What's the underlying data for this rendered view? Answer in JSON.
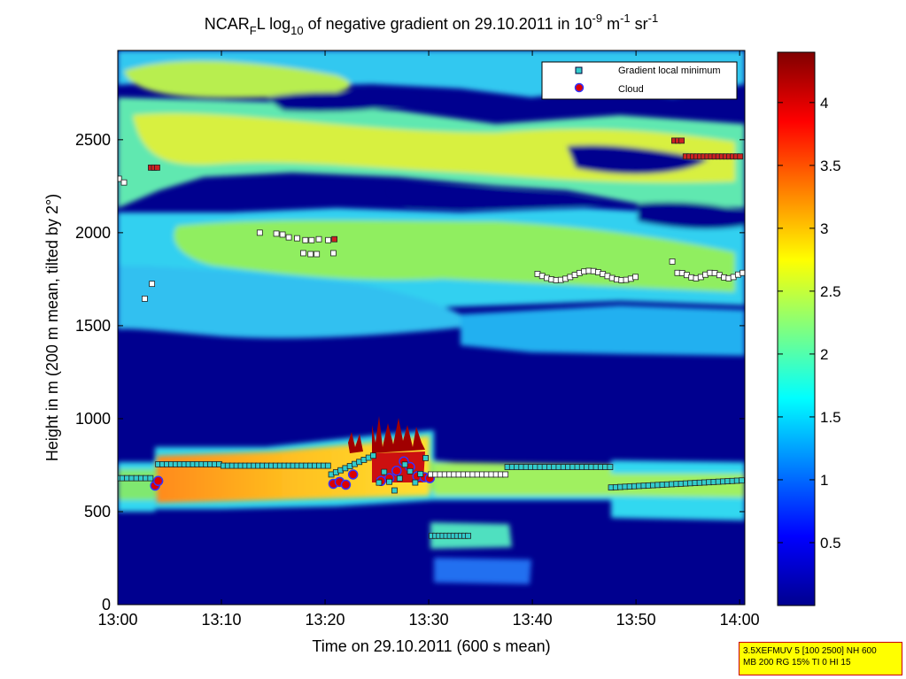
{
  "chart_data": {
    "type": "heatmap",
    "title": {
      "prefix": "NCAR",
      "sub1": "F",
      "mid1": "L log",
      "sub2": "10",
      "mid2": " of negative gradient on 29.10.2011 in 10",
      "sup1": "-9",
      "mid3": " m",
      "sup2": "-1",
      "mid4": " sr",
      "sup3": "-1"
    },
    "xlabel": "Time on 29.10.2011 (600 s mean)",
    "ylabel": "Height in m (200 m mean, tilted by 2°)",
    "x_ticks": [
      "13:00",
      "13:10",
      "13:20",
      "13:30",
      "13:40",
      "13:50",
      "14:00"
    ],
    "x_range_minutes": [
      0,
      60.5
    ],
    "y_ticks": [
      0,
      500,
      1000,
      1500,
      2000,
      2500
    ],
    "y_range": [
      0,
      2980
    ],
    "colorbar": {
      "ticks": [
        0.5,
        1,
        1.5,
        2,
        2.5,
        3,
        3.5,
        4
      ],
      "range": [
        0,
        4.4
      ],
      "colormap": "jet"
    },
    "legend": {
      "placement": "top-right",
      "entries": [
        {
          "label": "Gradient local minimum",
          "marker": "square",
          "color": "#33cccc"
        },
        {
          "label": "Cloud",
          "marker": "circle",
          "color": "#dd0000",
          "edge": "#3333ff"
        }
      ]
    },
    "cloud_points": [
      {
        "t": 3.6,
        "h": 640
      },
      {
        "t": 3.9,
        "h": 665
      },
      {
        "t": 20.8,
        "h": 650
      },
      {
        "t": 21.4,
        "h": 660
      },
      {
        "t": 22.0,
        "h": 645
      },
      {
        "t": 22.7,
        "h": 700
      },
      {
        "t": 25.4,
        "h": 665
      },
      {
        "t": 26.2,
        "h": 680
      },
      {
        "t": 26.9,
        "h": 720
      },
      {
        "t": 27.6,
        "h": 770
      },
      {
        "t": 28.2,
        "h": 740
      },
      {
        "t": 28.9,
        "h": 690
      },
      {
        "t": 29.6,
        "h": 685
      },
      {
        "t": 30.1,
        "h": 680
      }
    ]
  },
  "info_box": {
    "line1": "3.5XEFMUV 5 [100 2500] NH 600",
    "line2": "MB 200 RG 15% TI 0 HI 15"
  },
  "colors": {
    "background_low": "#00008f",
    "legend_marker_square": "#33cccc",
    "legend_marker_cloud": "#dd0000",
    "info_box_bg": "#ffff00"
  }
}
